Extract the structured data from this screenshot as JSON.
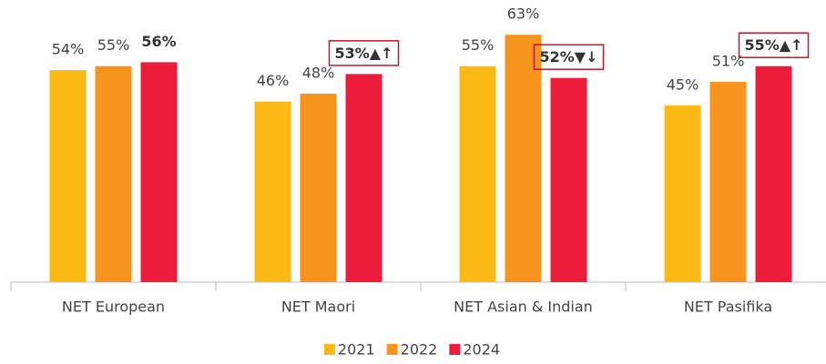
{
  "chart_data": {
    "type": "bar",
    "categories": [
      "NET European",
      "NET Maori",
      "NET Asian & Indian",
      "NET Pasifika"
    ],
    "ylim": [
      0,
      70
    ],
    "series": [
      {
        "name": "2021",
        "color": "#fdb913",
        "values": [
          54,
          46,
          55,
          45
        ],
        "value_labels": [
          "54%",
          "46%",
          "55%",
          "45%"
        ]
      },
      {
        "name": "2022",
        "color": "#f7941d",
        "values": [
          55,
          48,
          63,
          51
        ],
        "value_labels": [
          "55%",
          "48%",
          "63%",
          "51%"
        ]
      },
      {
        "name": "2024",
        "color": "#ed1c3a",
        "values": [
          56,
          53,
          52,
          55
        ],
        "value_labels": [
          "56%",
          "53%▲↑",
          "52%▼↓",
          "55%▲↑"
        ],
        "bold": true,
        "boxed": [
          false,
          true,
          true,
          true
        ]
      }
    ],
    "legend": "bottom"
  }
}
